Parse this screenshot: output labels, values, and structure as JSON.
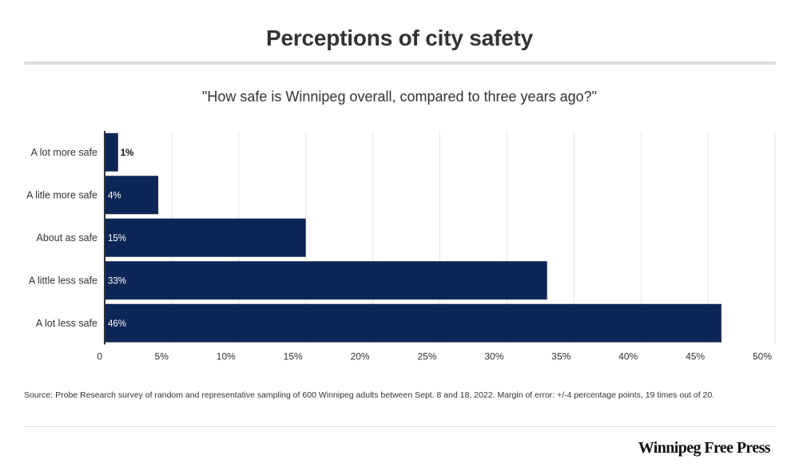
{
  "header": {
    "title": "Perceptions of city safety",
    "subtitle": "\"How safe is Winnipeg overall, compared to three years ago?\""
  },
  "footer": {
    "source": "Source: Probe Research survey of random and representative sampling of 600 Winnipeg adults between Sept. 8 and 18, 2022.  Margin of error: +/-4 percentage points, 19 times out of 20.",
    "brand": "Winnipeg Free Press"
  },
  "colors": {
    "bar": "#0c2657",
    "grid": "#e6e6e6",
    "axis": "#333333"
  },
  "chart_data": {
    "type": "bar",
    "orientation": "horizontal",
    "title": "Perceptions of city safety",
    "subtitle": "\"How safe is Winnipeg overall, compared to three years ago?\"",
    "categories": [
      "A lot more safe",
      "A litle more safe",
      "About as safe",
      "A little less safe",
      "A lot less safe"
    ],
    "values": [
      1,
      4,
      15,
      33,
      46
    ],
    "value_labels": [
      "1%",
      "4%",
      "15%",
      "33%",
      "46%"
    ],
    "xlim": [
      0,
      50
    ],
    "xticks": [
      {
        "value": 0,
        "label": "0"
      },
      {
        "value": 5,
        "label": "5%"
      },
      {
        "value": 10,
        "label": "10%"
      },
      {
        "value": 15,
        "label": "15%"
      },
      {
        "value": 20,
        "label": "20%"
      },
      {
        "value": 25,
        "label": "25%"
      },
      {
        "value": 30,
        "label": "30%"
      },
      {
        "value": 35,
        "label": "35%"
      },
      {
        "value": 40,
        "label": "40%"
      },
      {
        "value": 45,
        "label": "45%"
      },
      {
        "value": 50,
        "label": "50%"
      }
    ],
    "grid": true,
    "legend": "none"
  }
}
